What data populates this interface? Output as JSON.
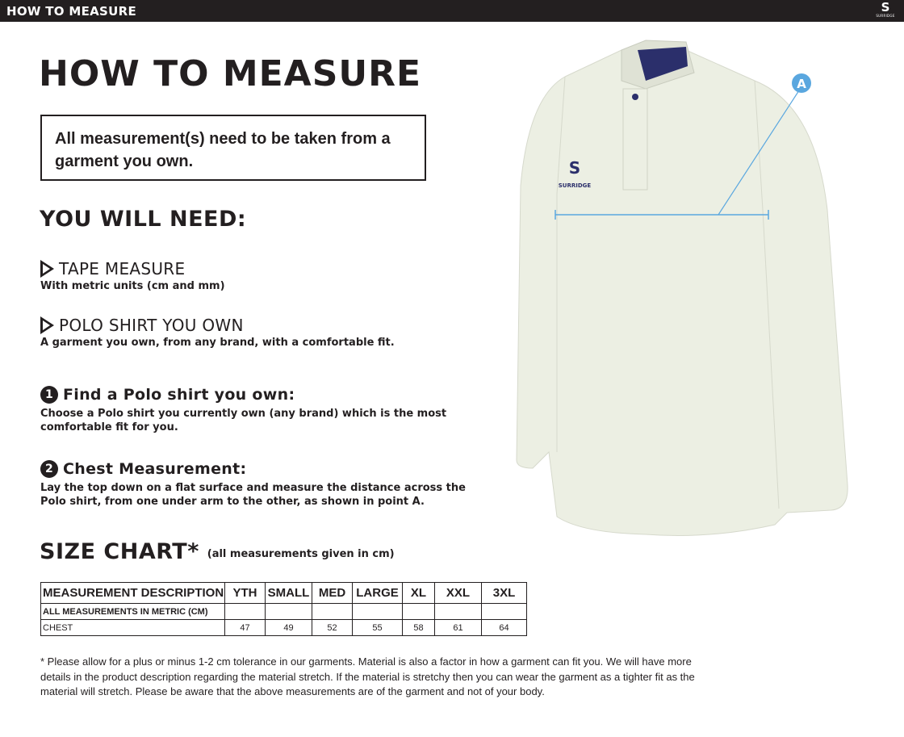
{
  "topbar": {
    "title": "HOW TO MEASURE",
    "logo_text": "SURRIDGE"
  },
  "title": "HOW TO MEASURE",
  "notice": "All measurement(s) need to be taken from a garment you own.",
  "need_heading": "YOU WILL NEED:",
  "needs": [
    {
      "title": "TAPE MEASURE",
      "desc": "With metric units (cm and mm)"
    },
    {
      "title": "POLO SHIRT YOU OWN",
      "desc": "A garment you own, from any brand, with a comfortable fit."
    }
  ],
  "steps": [
    {
      "num": "1",
      "title": "Find a Polo shirt you own:",
      "desc": "Choose a Polo shirt you currently own (any brand) which is the most comfortable fit for you."
    },
    {
      "num": "2",
      "title": "Chest Measurement:",
      "desc": "Lay the top down on a flat surface and measure the distance across the Polo shirt, from one under arm to the other, as shown in point A."
    }
  ],
  "size_chart": {
    "title": "SIZE CHART*",
    "note": "(all measurements given in cm)",
    "header": [
      "MEASUREMENT DESCRIPTION",
      "YTH",
      "SMALL",
      "MED",
      "LARGE",
      "XL",
      "XXL",
      "3XL"
    ],
    "subheader": "ALL MEASUREMENTS IN METRIC (CM)",
    "rows": [
      {
        "label": "CHEST",
        "values": [
          "47",
          "49",
          "52",
          "55",
          "58",
          "61",
          "64"
        ]
      }
    ]
  },
  "footnote": "* Please allow for a plus or minus 1-2 cm tolerance in our garments. Material is also a factor in how a garment can fit you. We will have more details in the product description regarding the material stretch.  If the material is stretchy then you can wear the garment as a tighter fit as the material will stretch.  Please be aware that the above measurements are of the garment and not of your body.",
  "diagram": {
    "point_label": "A",
    "chest_logo": "SURRIDGE",
    "colors": {
      "shirt": "#ecefe3",
      "collar": "#2b2f6b",
      "measure": "#5aa7df"
    }
  }
}
